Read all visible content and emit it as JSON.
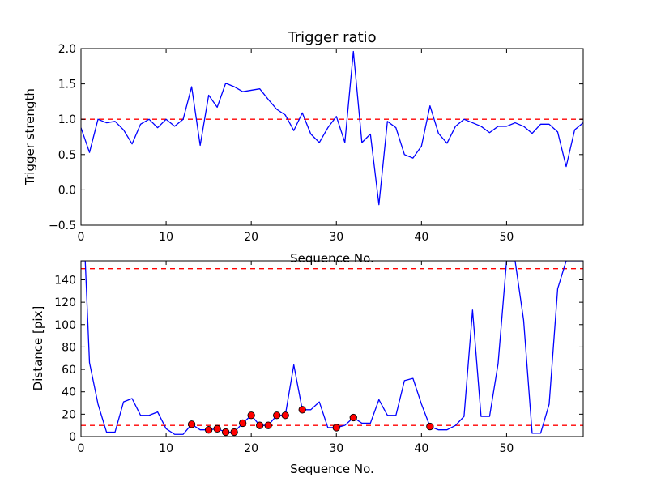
{
  "chart_data": [
    {
      "type": "line",
      "title": "Trigger ratio",
      "xlabel": "Sequence No.",
      "ylabel": "Trigger strength",
      "xlim": [
        0,
        59
      ],
      "ylim": [
        -0.5,
        2.0
      ],
      "xticks": [
        0,
        10,
        20,
        30,
        40,
        50
      ],
      "xtick_labels": [
        "0",
        "10",
        "20",
        "30",
        "40",
        "50"
      ],
      "yticks": [
        -0.5,
        0.0,
        0.5,
        1.0,
        1.5,
        2.0
      ],
      "ytick_labels": [
        "−0.5",
        "0.0",
        "0.5",
        "1.0",
        "1.5",
        "2.0"
      ],
      "threshold_lines": [
        1.0
      ],
      "colors": {
        "series": "#0000ff",
        "threshold": "#ff0000"
      },
      "series": [
        {
          "name": "Trigger strength",
          "x": [
            0,
            1,
            2,
            3,
            4,
            5,
            6,
            7,
            8,
            9,
            10,
            11,
            12,
            13,
            14,
            15,
            16,
            17,
            18,
            19,
            20,
            21,
            22,
            23,
            24,
            25,
            26,
            27,
            28,
            29,
            30,
            31,
            32,
            33,
            34,
            35,
            36,
            37,
            38,
            39,
            40,
            41,
            42,
            43,
            44,
            45,
            46,
            47,
            48,
            49,
            50,
            51,
            52,
            53,
            54,
            55,
            56,
            57,
            58,
            59
          ],
          "values": [
            0.88,
            0.53,
            1.0,
            0.95,
            0.97,
            0.85,
            0.65,
            0.93,
            1.0,
            0.88,
            1.0,
            0.9,
            1.0,
            1.46,
            0.63,
            1.34,
            1.17,
            1.51,
            1.46,
            1.39,
            1.41,
            1.43,
            1.28,
            1.14,
            1.06,
            0.84,
            1.09,
            0.79,
            0.67,
            0.88,
            1.04,
            0.67,
            1.96,
            0.67,
            0.79,
            -0.21,
            0.97,
            0.88,
            0.5,
            0.45,
            0.62,
            1.19,
            0.8,
            0.66,
            0.9,
            1.0,
            0.95,
            0.9,
            0.81,
            0.9,
            0.9,
            0.95,
            0.9,
            0.8,
            0.93,
            0.93,
            0.82,
            0.33,
            0.85,
            0.95
          ]
        }
      ]
    },
    {
      "type": "line",
      "title": "",
      "xlabel": "Sequence No.",
      "ylabel": "Distance [pix]",
      "xlim": [
        0,
        59
      ],
      "ylim": [
        0,
        157
      ],
      "xticks": [
        0,
        10,
        20,
        30,
        40,
        50
      ],
      "xtick_labels": [
        "0",
        "10",
        "20",
        "30",
        "40",
        "50"
      ],
      "yticks": [
        0,
        20,
        40,
        60,
        80,
        100,
        120,
        140
      ],
      "ytick_labels": [
        "0",
        "20",
        "40",
        "60",
        "80",
        "100",
        "120",
        "140"
      ],
      "threshold_lines": [
        150,
        10
      ],
      "colors": {
        "series": "#0000ff",
        "threshold": "#ff0000",
        "marker": "#ff0000",
        "marker_edge": "#000000"
      },
      "series": [
        {
          "name": "Distance",
          "x": [
            0,
            0.5,
            1,
            2,
            3,
            4,
            5,
            6,
            7,
            8,
            9,
            10,
            11,
            12,
            13,
            14,
            15,
            16,
            17,
            18,
            19,
            20,
            21,
            22,
            23,
            24,
            25,
            26,
            27,
            28,
            29,
            30,
            31,
            32,
            33,
            34,
            35,
            36,
            37,
            38,
            39,
            40,
            41,
            42,
            43,
            44,
            45,
            46,
            47,
            48,
            49,
            50,
            51,
            52,
            53,
            54,
            55,
            56,
            57,
            58,
            59
          ],
          "values": [
            157,
            157,
            66,
            29,
            4,
            4,
            31,
            34,
            19,
            19,
            22,
            7,
            2,
            2,
            11,
            6,
            6,
            7,
            4,
            4,
            12,
            19,
            10,
            10,
            19,
            19,
            64,
            24,
            24,
            31,
            8,
            8,
            10,
            17,
            12,
            12,
            33,
            19,
            19,
            50,
            52,
            29,
            9,
            6,
            6,
            10,
            18,
            113,
            18,
            18,
            65,
            157,
            157,
            104,
            3,
            3,
            29,
            132,
            157,
            157,
            157
          ]
        },
        {
          "name": "Flagged points",
          "x": [
            13,
            15,
            16,
            17,
            18,
            19,
            20,
            21,
            22,
            23,
            24,
            26,
            30,
            32,
            41
          ],
          "values": [
            11,
            6,
            7,
            4,
            4,
            12,
            19,
            10,
            10,
            19,
            19,
            24,
            8,
            17,
            9
          ]
        }
      ]
    }
  ]
}
